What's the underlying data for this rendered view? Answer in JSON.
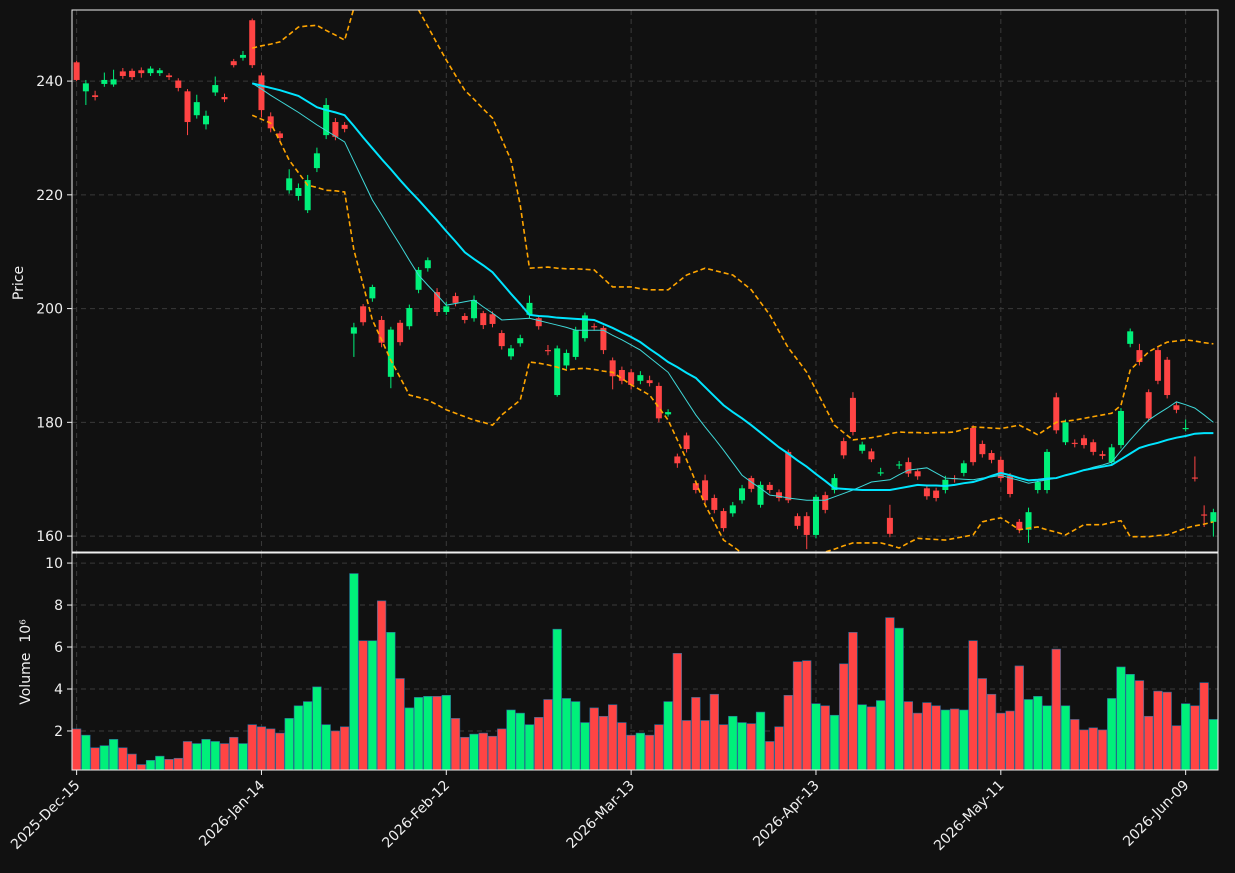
{
  "chart_data": {
    "type": "candlestick",
    "y_label": "Price",
    "volume_label": "Volume",
    "volume_scale_label": "10⁶",
    "categories": [
      "2025-Dec-15",
      null,
      null,
      null,
      null,
      null,
      null,
      null,
      null,
      null,
      null,
      null,
      null,
      null,
      null,
      null,
      null,
      null,
      null,
      null,
      "2026-Jan-14",
      null,
      null,
      null,
      null,
      null,
      null,
      null,
      null,
      null,
      null,
      null,
      null,
      null,
      null,
      null,
      null,
      null,
      null,
      null,
      "2026-Feb-12",
      null,
      null,
      null,
      null,
      null,
      null,
      null,
      null,
      null,
      null,
      null,
      null,
      null,
      null,
      null,
      null,
      null,
      null,
      null,
      "2026-Mar-13",
      null,
      null,
      null,
      null,
      null,
      null,
      null,
      null,
      null,
      null,
      null,
      null,
      null,
      null,
      null,
      null,
      null,
      null,
      null,
      "2026-Apr-13",
      null,
      null,
      null,
      null,
      null,
      null,
      null,
      null,
      null,
      null,
      null,
      null,
      null,
      null,
      null,
      null,
      null,
      null,
      null,
      "2026-May-11",
      null,
      null,
      null,
      null,
      null,
      null,
      null,
      null,
      null,
      null,
      null,
      null,
      null,
      null,
      null,
      null,
      null,
      null,
      null,
      "2026-Jun-09",
      null,
      null,
      null
    ],
    "open": [
      243.3,
      238.2,
      237.5,
      239.5,
      239.4,
      241.7,
      241.8,
      241.9,
      241.4,
      241.4,
      241.0,
      240.1,
      238.2,
      234.0,
      232.4,
      238.0,
      237.2,
      243.5,
      244.1,
      250.7,
      241.0,
      233.8,
      230.8,
      220.8,
      219.8,
      217.3,
      224.7,
      230.5,
      232.8,
      232.3,
      195.6,
      200.4,
      201.8,
      198.0,
      188.0,
      197.5,
      196.9,
      203.3,
      207.1,
      202.9,
      199.4,
      202.2,
      198.7,
      198.3,
      199.2,
      199.0,
      195.7,
      191.6,
      193.9,
      198.9,
      198.3,
      192.7,
      184.8,
      190.0,
      191.5,
      194.8,
      196.9,
      196.6,
      190.9,
      189.2,
      188.8,
      187.3,
      187.4,
      186.4,
      181.4,
      174.0,
      177.7,
      169.3,
      169.8,
      166.7,
      164.4,
      164.0,
      166.3,
      170.2,
      165.5,
      169.0,
      167.7,
      174.8,
      163.5,
      163.5,
      160.2,
      167.2,
      168.1,
      176.7,
      184.3,
      175.0,
      174.9,
      171.0,
      163.2,
      172.4,
      173.0,
      171.4,
      168.4,
      168.0,
      168.1,
      170.2,
      171.1,
      179.0,
      176.2,
      174.6,
      173.4,
      170.6,
      162.5,
      161.1,
      168.1,
      168.1,
      184.4,
      176.5,
      176.4,
      177.2,
      176.5,
      174.4,
      173.0,
      176.0,
      193.8,
      192.7,
      185.3,
      192.7,
      191.0,
      183.0,
      178.8,
      170.3,
      163.8,
      162.5
    ],
    "high": [
      243.6,
      240.2,
      238.3,
      241.5,
      242.0,
      242.3,
      242.2,
      242.4,
      242.6,
      242.3,
      241.4,
      240.5,
      238.6,
      237.6,
      234.8,
      240.8,
      237.8,
      243.9,
      245.3,
      251.0,
      241.5,
      234.5,
      231.2,
      224.5,
      222.0,
      223.5,
      228.3,
      237.0,
      233.5,
      232.8,
      197.5,
      200.8,
      204.2,
      198.7,
      196.8,
      198.0,
      200.7,
      207.3,
      209.0,
      203.6,
      201.2,
      202.8,
      199.2,
      202.3,
      199.6,
      199.5,
      196.2,
      193.6,
      195.4,
      202.3,
      198.8,
      193.6,
      193.5,
      192.8,
      196.8,
      199.3,
      197.4,
      197.0,
      191.4,
      189.8,
      189.4,
      189.0,
      188.2,
      187.0,
      182.3,
      174.5,
      178.2,
      169.8,
      170.8,
      167.3,
      164.9,
      166.0,
      169.0,
      170.6,
      169.6,
      169.5,
      168.2,
      175.2,
      164.0,
      164.2,
      167.3,
      167.8,
      170.9,
      177.3,
      185.3,
      176.6,
      175.4,
      172.0,
      165.5,
      173.2,
      173.8,
      171.9,
      168.9,
      168.5,
      170.6,
      170.7,
      173.3,
      179.5,
      176.8,
      175.1,
      174.0,
      171.1,
      163.0,
      165.0,
      170.0,
      175.3,
      185.2,
      180.5,
      177.0,
      177.8,
      177.0,
      175.0,
      176.2,
      182.5,
      196.5,
      193.8,
      185.8,
      193.2,
      191.5,
      183.6,
      180.5,
      174.0,
      165.4,
      164.8
    ],
    "low": [
      240.0,
      235.8,
      236.6,
      239.0,
      239.0,
      240.4,
      240.2,
      240.6,
      240.9,
      240.9,
      240.2,
      238.2,
      230.5,
      233.4,
      231.5,
      237.4,
      236.3,
      242.4,
      243.6,
      242.3,
      233.6,
      231.0,
      229.4,
      220.2,
      219.0,
      216.8,
      224.0,
      229.8,
      229.6,
      231.0,
      191.5,
      197.0,
      201.2,
      193.2,
      186.0,
      193.5,
      196.3,
      202.7,
      206.5,
      198.7,
      198.9,
      200.4,
      197.4,
      197.7,
      196.4,
      196.7,
      192.8,
      191.0,
      193.3,
      198.3,
      196.3,
      191.8,
      184.5,
      189.4,
      191.0,
      194.2,
      196.1,
      192.0,
      185.8,
      186.7,
      185.8,
      186.7,
      186.3,
      180.0,
      181.0,
      172.0,
      174.7,
      167.5,
      165.7,
      164.0,
      160.8,
      163.4,
      165.7,
      167.7,
      165.0,
      167.5,
      166.1,
      165.8,
      161.2,
      157.7,
      159.6,
      164.0,
      167.5,
      173.6,
      177.7,
      174.5,
      173.0,
      170.6,
      159.8,
      171.8,
      170.4,
      169.9,
      166.4,
      166.1,
      167.5,
      169.4,
      170.5,
      172.4,
      173.8,
      172.8,
      169.6,
      166.8,
      160.5,
      158.8,
      167.5,
      167.5,
      178.0,
      176.0,
      175.6,
      175.4,
      174.2,
      173.5,
      172.4,
      175.4,
      193.2,
      190.0,
      180.1,
      186.7,
      184.2,
      181.6,
      178.4,
      169.6,
      161.6,
      159.9
    ],
    "close": [
      240.2,
      239.6,
      237.2,
      240.2,
      240.3,
      240.9,
      240.7,
      241.4,
      242.2,
      241.9,
      240.7,
      238.8,
      232.8,
      236.3,
      233.9,
      239.3,
      236.8,
      242.8,
      244.6,
      242.8,
      234.9,
      231.7,
      230.0,
      222.9,
      221.2,
      222.6,
      227.3,
      235.8,
      230.2,
      231.6,
      196.7,
      197.6,
      203.8,
      194.0,
      196.3,
      194.1,
      200.1,
      206.8,
      208.5,
      199.4,
      200.4,
      201.0,
      198.0,
      201.5,
      197.1,
      197.3,
      193.4,
      193.0,
      194.8,
      201.0,
      196.9,
      192.5,
      193.0,
      192.2,
      196.2,
      198.8,
      196.7,
      192.7,
      188.1,
      187.3,
      186.6,
      188.3,
      186.9,
      180.7,
      181.8,
      172.8,
      175.3,
      168.1,
      166.3,
      164.6,
      161.4,
      165.4,
      168.4,
      168.3,
      169.0,
      168.1,
      166.7,
      166.3,
      161.8,
      160.2,
      166.9,
      164.6,
      170.2,
      174.2,
      178.3,
      176.1,
      173.5,
      171.2,
      160.4,
      172.6,
      171.0,
      170.5,
      167.0,
      166.7,
      169.9,
      170.0,
      172.8,
      173.0,
      174.4,
      173.4,
      170.2,
      167.4,
      161.1,
      164.2,
      169.5,
      174.8,
      178.6,
      180.0,
      176.2,
      176.0,
      174.8,
      174.1,
      175.6,
      182.0,
      196.0,
      190.6,
      180.7,
      187.3,
      184.8,
      182.2,
      179.0,
      170.1,
      163.6,
      164.2
    ],
    "volume": [
      2.1,
      1.8,
      1.2,
      1.3,
      1.6,
      1.2,
      0.9,
      0.4,
      0.6,
      0.8,
      0.65,
      0.7,
      1.5,
      1.4,
      1.6,
      1.5,
      1.4,
      1.7,
      1.4,
      2.3,
      2.2,
      2.1,
      1.9,
      2.6,
      3.2,
      3.4,
      4.1,
      2.3,
      2.0,
      2.2,
      9.5,
      6.3,
      6.3,
      8.2,
      6.7,
      4.5,
      3.1,
      3.6,
      3.65,
      3.65,
      3.7,
      2.6,
      1.7,
      1.85,
      1.9,
      1.75,
      2.1,
      3.0,
      2.85,
      2.3,
      2.65,
      3.5,
      6.85,
      3.55,
      3.4,
      2.4,
      3.1,
      2.7,
      3.25,
      2.4,
      1.8,
      1.9,
      1.8,
      2.3,
      3.4,
      5.7,
      2.5,
      3.6,
      2.5,
      3.75,
      2.3,
      2.7,
      2.4,
      2.35,
      2.9,
      1.5,
      2.2,
      3.7,
      5.3,
      5.35,
      3.3,
      3.2,
      2.75,
      5.2,
      6.7,
      3.25,
      3.15,
      3.45,
      7.4,
      6.9,
      3.4,
      2.85,
      3.35,
      3.2,
      3.0,
      3.05,
      3.0,
      6.3,
      4.5,
      3.75,
      2.85,
      2.95,
      5.1,
      3.5,
      3.65,
      3.2,
      5.9,
      3.2,
      2.55,
      2.05,
      2.15,
      2.05,
      3.55,
      5.05,
      4.7,
      4.4,
      2.7,
      3.9,
      3.85,
      2.25,
      3.3,
      3.2,
      4.3,
      2.55
    ],
    "lines": [
      {
        "color": "#ffa500",
        "width": 1.6,
        "dash": true,
        "values": [
          null,
          null,
          null,
          null,
          null,
          null,
          null,
          null,
          null,
          null,
          null,
          null,
          null,
          null,
          null,
          null,
          null,
          null,
          null,
          245.8,
          246.2,
          246.5,
          246.9,
          248.2,
          249.5,
          249.7,
          249.8,
          248.9,
          248.1,
          247.2,
          252.8,
          254.5,
          256.3,
          258.0,
          256.6,
          255.3,
          253.9,
          252.5,
          249.6,
          246.6,
          243.7,
          241.0,
          238.4,
          236.8,
          235.1,
          233.5,
          229.8,
          226.1,
          218.2,
          207.1,
          207.2,
          207.3,
          207.1,
          207.0,
          207.0,
          206.9,
          206.8,
          205.3,
          203.8,
          203.8,
          203.8,
          203.5,
          203.3,
          203.3,
          203.3,
          204.6,
          205.9,
          206.5,
          207.1,
          206.7,
          206.3,
          205.9,
          204.6,
          203.3,
          201.1,
          198.9,
          196.0,
          193.1,
          191.0,
          188.8,
          185.7,
          182.6,
          179.5,
          178.2,
          176.9,
          177.1,
          177.3,
          177.6,
          178.0,
          178.3,
          178.2,
          178.2,
          178.1,
          178.2,
          178.2,
          178.3,
          178.8,
          179.2,
          179.1,
          179.0,
          178.9,
          179.2,
          179.5,
          178.7,
          177.8,
          178.9,
          180.0,
          180.2,
          180.4,
          180.7,
          181.0,
          181.3,
          181.6,
          183.0,
          189.2,
          190.8,
          192.4,
          193.3,
          194.1,
          194.3,
          194.5,
          194.3,
          194.0,
          193.8
        ]
      },
      {
        "color": "#ffa500",
        "width": 1.6,
        "dash": true,
        "values": [
          null,
          null,
          null,
          null,
          null,
          null,
          null,
          null,
          null,
          null,
          null,
          null,
          null,
          null,
          null,
          null,
          null,
          null,
          null,
          234.0,
          233.3,
          232.6,
          229.4,
          226.1,
          223.9,
          221.7,
          221.3,
          220.8,
          220.7,
          220.5,
          210.3,
          204.2,
          198.0,
          194.5,
          190.9,
          187.9,
          184.8,
          184.4,
          183.9,
          183.1,
          182.2,
          181.6,
          181.0,
          180.4,
          180.0,
          179.5,
          181.3,
          182.6,
          183.9,
          190.6,
          190.4,
          190.1,
          189.7,
          189.2,
          189.4,
          189.5,
          189.3,
          189.0,
          188.8,
          187.7,
          186.6,
          185.7,
          184.8,
          182.6,
          180.4,
          176.9,
          173.4,
          169.5,
          165.5,
          162.4,
          159.3,
          158.2,
          157.0,
          155.5,
          154.5,
          153.8,
          153.5,
          153.6,
          154.2,
          155.0,
          156.0,
          157.2,
          157.7,
          158.3,
          158.8,
          158.8,
          158.8,
          158.8,
          158.4,
          157.9,
          158.8,
          159.6,
          159.5,
          159.4,
          159.3,
          159.6,
          159.9,
          160.2,
          162.5,
          162.9,
          163.2,
          162.2,
          161.1,
          161.4,
          161.6,
          161.1,
          160.7,
          160.2,
          161.1,
          162.0,
          162.0,
          162.0,
          162.4,
          162.7,
          159.9,
          159.9,
          159.9,
          160.1,
          160.2,
          160.8,
          161.4,
          161.8,
          162.1,
          162.5
        ]
      },
      {
        "color": "#3fd8d8",
        "width": 1,
        "dash": false,
        "values": [
          null,
          null,
          null,
          null,
          null,
          null,
          null,
          null,
          null,
          null,
          null,
          null,
          null,
          null,
          null,
          null,
          null,
          null,
          null,
          239.6,
          238.6,
          237.5,
          236.5,
          235.5,
          234.5,
          233.4,
          232.3,
          231.3,
          230.3,
          229.3,
          225.9,
          222.5,
          219.1,
          216.5,
          213.8,
          211.2,
          208.5,
          205.9,
          204.1,
          202.4,
          200.6,
          200.9,
          201.2,
          201.5,
          200.3,
          199.2,
          198.0,
          198.1,
          198.2,
          198.3,
          197.9,
          197.5,
          197.1,
          196.7,
          196.2,
          196.2,
          196.2,
          196.2,
          195.3,
          194.5,
          193.6,
          192.7,
          191.4,
          190.1,
          188.8,
          186.3,
          183.8,
          181.3,
          179.2,
          177.2,
          175.1,
          172.9,
          170.7,
          169.5,
          168.4,
          167.2,
          167.0,
          166.7,
          166.5,
          166.3,
          166.3,
          166.3,
          166.9,
          167.5,
          168.1,
          168.8,
          169.5,
          169.7,
          169.9,
          170.8,
          171.6,
          171.8,
          172.0,
          171.1,
          170.2,
          170.1,
          170.0,
          169.9,
          170.2,
          170.4,
          170.7,
          170.2,
          169.8,
          169.3,
          169.6,
          169.9,
          170.2,
          170.7,
          171.1,
          171.6,
          172.1,
          172.5,
          173.0,
          175.0,
          176.9,
          178.7,
          180.4,
          181.5,
          182.5,
          183.6,
          183.1,
          182.5,
          181.3,
          180.0
        ]
      },
      {
        "color": "#00e5ff",
        "width": 2,
        "dash": false,
        "values": [
          null,
          null,
          null,
          null,
          null,
          null,
          null,
          null,
          null,
          null,
          null,
          null,
          null,
          null,
          null,
          null,
          null,
          null,
          null,
          239.6,
          239.2,
          238.8,
          238.4,
          237.9,
          237.4,
          236.4,
          235.4,
          234.9,
          234.5,
          234.0,
          232.1,
          230.1,
          228.2,
          226.3,
          224.5,
          222.6,
          220.8,
          219.1,
          217.3,
          215.5,
          213.6,
          211.8,
          209.9,
          208.7,
          207.6,
          206.4,
          204.5,
          202.6,
          200.8,
          198.9,
          198.7,
          198.6,
          198.4,
          198.3,
          198.2,
          198.1,
          198.0,
          197.3,
          196.6,
          195.8,
          195.0,
          194.1,
          192.9,
          191.8,
          190.6,
          189.7,
          188.7,
          187.8,
          186.2,
          184.6,
          183.0,
          181.8,
          180.7,
          179.5,
          178.2,
          176.9,
          175.6,
          174.5,
          173.3,
          172.2,
          170.9,
          169.7,
          168.4,
          168.3,
          168.2,
          168.1,
          168.1,
          168.1,
          168.1,
          168.4,
          168.7,
          169.0,
          168.9,
          168.9,
          168.8,
          169.0,
          169.3,
          169.5,
          170.0,
          170.6,
          171.1,
          170.7,
          170.2,
          169.8,
          169.9,
          170.1,
          170.2,
          170.7,
          171.1,
          171.6,
          171.9,
          172.2,
          172.5,
          173.5,
          174.5,
          175.5,
          176.0,
          176.4,
          176.9,
          177.3,
          177.6,
          178.0,
          178.1,
          178.1
        ]
      }
    ],
    "up_color": "#00f07a",
    "down_color": "#ff4444",
    "ylim": [
      157.2,
      252.5
    ],
    "yticks": [
      160,
      180,
      200,
      220,
      240
    ],
    "volume_ylim": [
      0.14,
      10.48
    ],
    "volume_yticks": [
      2,
      4,
      6,
      8,
      10
    ],
    "grid": true
  }
}
